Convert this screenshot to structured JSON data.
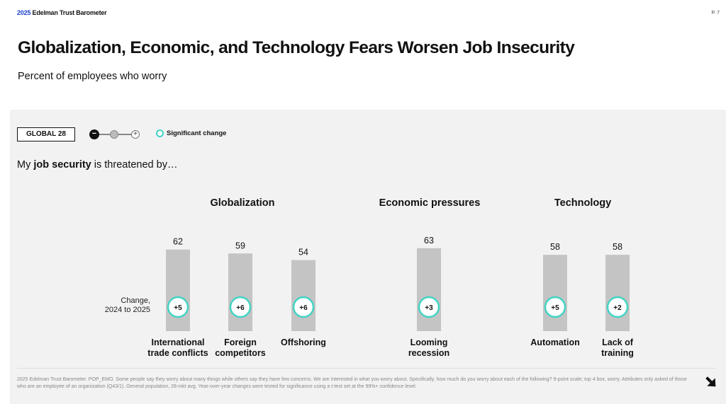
{
  "header": {
    "brand_year": "2025",
    "brand_name": "Edelman Trust Barometer",
    "page_number": "P. 7"
  },
  "title": "Globalization, Economic, and Technology Fears Worsen Job Insecurity",
  "subtitle": "Percent of employees who worry",
  "controls": {
    "global_button": "GLOBAL 28",
    "stepper_minus": "−",
    "stepper_plus": "+",
    "legend_significant": "Significant change",
    "significant_color": "#43d3c3"
  },
  "question": {
    "prefix": "My ",
    "bold": "job security",
    "suffix": " is threatened by…"
  },
  "change_label": {
    "line1": "Change,",
    "line2": "2024 to 2025"
  },
  "chart_data": {
    "type": "bar",
    "bar_color": "#c4c4c4",
    "groups": [
      {
        "name": "Globalization",
        "items": [
          {
            "label": [
              "International",
              "trade conflicts"
            ],
            "value": 62,
            "change": "+5",
            "significant": true
          },
          {
            "label": [
              "Foreign",
              "competitors"
            ],
            "value": 59,
            "change": "+6",
            "significant": true
          },
          {
            "label": [
              "Offshoring"
            ],
            "value": 54,
            "change": "+6",
            "significant": true
          }
        ]
      },
      {
        "name": "Economic pressures",
        "items": [
          {
            "label": [
              "Looming",
              "recession"
            ],
            "value": 63,
            "change": "+3",
            "significant": true
          }
        ]
      },
      {
        "name": "Technology",
        "items": [
          {
            "label": [
              "Automation"
            ],
            "value": 58,
            "change": "+5",
            "significant": true
          },
          {
            "label": [
              "Lack of",
              "training"
            ],
            "value": 58,
            "change": "+2",
            "significant": true
          }
        ]
      }
    ]
  },
  "footnote": "2025 Edelman Trust Barometer. POP_EMO. Some people say they worry about many things while others say they have few concerns. We are interested in what you worry about. Specifically, how much do you worry about each of the following? 9-point scale; top 4 box, worry. Attributes only asked of those who are an employee of an organization (Q43/1). General population, 28-mkt avg. Year-over-year changes were tested for significance using a t-test set at the 99%+ confidence level."
}
